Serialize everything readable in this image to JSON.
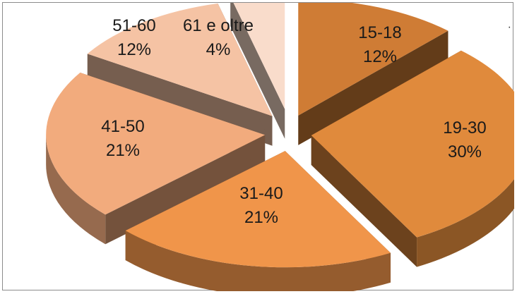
{
  "chart_data": {
    "type": "pie",
    "style": "3d-exploded",
    "categories": [
      "15-18",
      "19-30",
      "31-40",
      "41-50",
      "51-60",
      "61 e oltre"
    ],
    "values": [
      12,
      30,
      21,
      21,
      12,
      4
    ],
    "value_labels": [
      "12%",
      "30%",
      "21%",
      "21%",
      "12%",
      "4%"
    ],
    "colors": {
      "15-18": "#cf7c35",
      "19-30": "#e08a3c",
      "31-40": "#f0954a",
      "41-50": "#f2ab7d",
      "51-60": "#f5c3a4",
      "61 e oltre": "#f9dccb"
    },
    "legend": "none",
    "title": ""
  }
}
